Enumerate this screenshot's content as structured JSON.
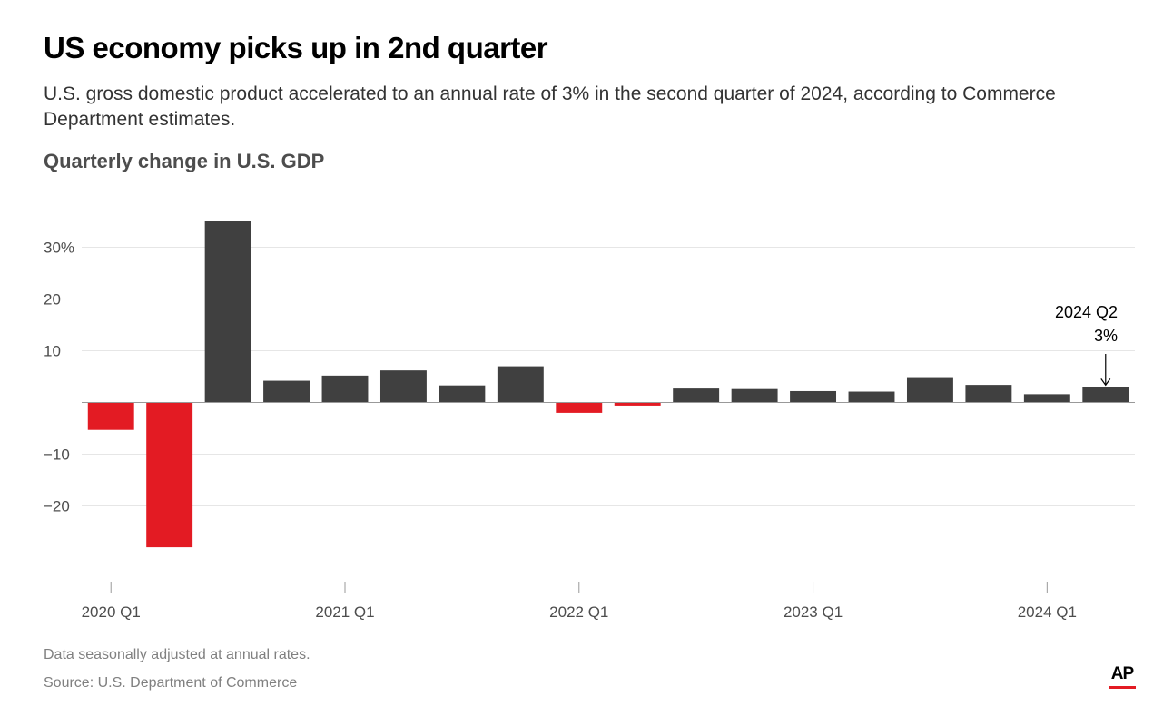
{
  "title": "US economy picks up in 2nd quarter",
  "subtitle": "U.S. gross domestic product accelerated to an annual rate of 3% in the second quarter of 2024, according to Commerce Department estimates.",
  "chart_label": "Quarterly change in U.S. GDP",
  "notes": {
    "adjusted": "Data seasonally adjusted at annual rates.",
    "source": "Source: U.S. Department of Commerce"
  },
  "logo": "AP",
  "colors": {
    "positive": "#404040",
    "negative": "#e31b23",
    "grid": "#e6e6e6",
    "axis": "#999999"
  },
  "chart_data": {
    "type": "bar",
    "categories": [
      "2020 Q1",
      "2020 Q2",
      "2020 Q3",
      "2020 Q4",
      "2021 Q1",
      "2021 Q2",
      "2021 Q3",
      "2021 Q4",
      "2022 Q1",
      "2022 Q2",
      "2022 Q3",
      "2022 Q4",
      "2023 Q1",
      "2023 Q2",
      "2023 Q3",
      "2023 Q4",
      "2024 Q1",
      "2024 Q2"
    ],
    "values": [
      -5.3,
      -28.0,
      35.0,
      4.2,
      5.2,
      6.2,
      3.3,
      7.0,
      -2.0,
      -0.6,
      2.7,
      2.6,
      2.2,
      2.1,
      4.9,
      3.4,
      1.6,
      3.0
    ],
    "ylim": [
      -32,
      35
    ],
    "yticks": [
      -20,
      -10,
      10,
      20,
      30
    ],
    "ytick_labels": [
      "−20",
      "−10",
      "10",
      "20",
      "30%"
    ],
    "xtick_labels": [
      "2020 Q1",
      "2021 Q1",
      "2022 Q1",
      "2023 Q1",
      "2024 Q1"
    ],
    "xtick_index": [
      0,
      4,
      8,
      12,
      16
    ],
    "annotation": {
      "index": 17,
      "line1": "2024 Q2",
      "line2": "3%"
    },
    "grid": true
  }
}
